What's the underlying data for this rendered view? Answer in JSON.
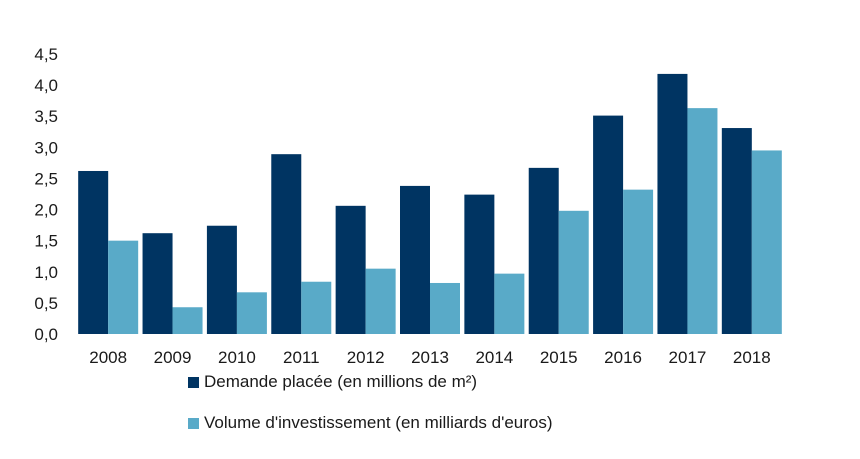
{
  "chart_data": {
    "type": "bar",
    "categories": [
      "2008",
      "2009",
      "2010",
      "2011",
      "2012",
      "2013",
      "2014",
      "2015",
      "2016",
      "2017",
      "2018"
    ],
    "series": [
      {
        "name": "Demande placée (en millions de m²)",
        "color": "#003462",
        "values": [
          2.62,
          1.62,
          1.74,
          2.89,
          2.06,
          2.38,
          2.24,
          2.67,
          3.51,
          4.18,
          3.31
        ]
      },
      {
        "name": "Volume d'investissement (en milliards d'euros)",
        "color": "#59AAC8",
        "values": [
          1.5,
          0.43,
          0.67,
          0.84,
          1.05,
          0.82,
          0.97,
          1.98,
          2.32,
          3.63,
          2.95
        ]
      }
    ],
    "y_ticks": [
      "0,0",
      "0,5",
      "1,0",
      "1,5",
      "2,0",
      "2,5",
      "3,0",
      "3,5",
      "4,0",
      "4,5"
    ],
    "ylim": [
      0,
      4.5
    ],
    "title": "",
    "xlabel": "",
    "ylabel": "",
    "grid": false,
    "legend_position": "bottom"
  }
}
